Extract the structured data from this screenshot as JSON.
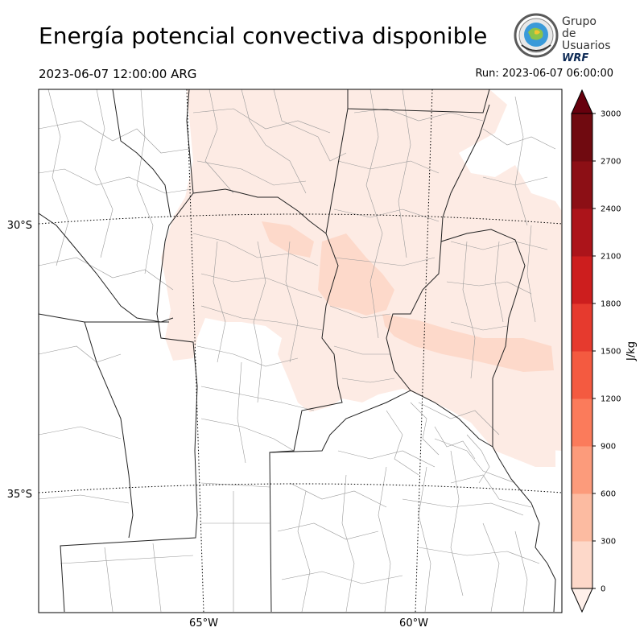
{
  "title": "Energía potencial convectiva disponible",
  "valid_time": "2023-06-07 12:00:00 ARG",
  "run_time": "Run: 2023-06-07 06:00:00",
  "logo": {
    "line1": "Grupo de",
    "line2": "Usuarios",
    "line3": "WRF",
    "colors": {
      "ring": "#5a5a5a",
      "inner": "#3a9ad9",
      "land": "#8bc34a",
      "accent": "#f4c430"
    }
  },
  "map": {
    "lat_labels": [
      "30°S",
      "35°S"
    ],
    "lon_labels": [
      "65°W",
      "60°W"
    ]
  },
  "colorbar": {
    "label": "J/kg",
    "ticks": [
      "0",
      "300",
      "600",
      "900",
      "1200",
      "1500",
      "1800",
      "2100",
      "2400",
      "2700",
      "3000"
    ],
    "colors": [
      "#fff0ea",
      "#fdd8c9",
      "#fcbba1",
      "#fc9b7b",
      "#fb7b5b",
      "#f45a40",
      "#e63a2e",
      "#cd1e1e",
      "#ac141a",
      "#8c0f15",
      "#700a10"
    ],
    "extend_color": "#67000d"
  }
}
